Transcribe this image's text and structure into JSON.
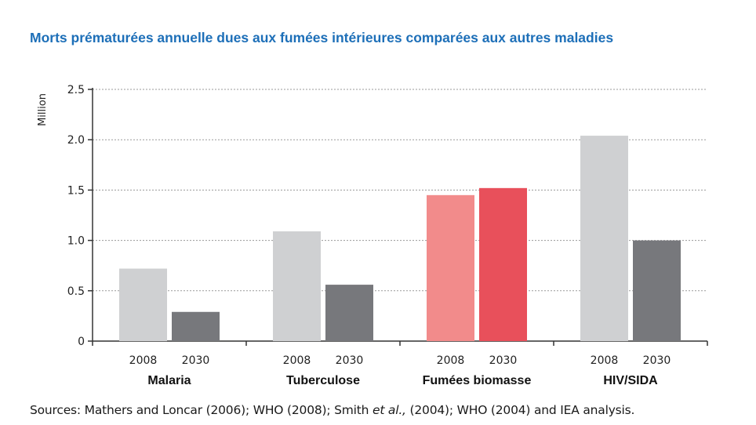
{
  "title": "Morts prématurées annuelle dues aux fumées intérieures comparées aux autres maladies",
  "source_prefix": "Sources: Mathers and Loncar (2006); WHO (2008); Smith ",
  "source_italic": "et al.,",
  "source_suffix": " (2004); WHO (2004) and IEA analysis.",
  "chart_data": {
    "type": "bar",
    "title": "Morts prématurées annuelle dues aux fumées intérieures comparées aux autres maladies",
    "ylabel": "Million",
    "xlabel": "",
    "ylim": [
      0,
      2.5
    ],
    "yticks": [
      0,
      0.5,
      1.0,
      1.5,
      2.0,
      2.5
    ],
    "ytick_labels": [
      "0",
      "0.5",
      "1.0",
      "1.5",
      "2.0",
      "2.5"
    ],
    "grid": "horizontal dotted",
    "categories": [
      "Malaria",
      "Tuberculose",
      "Fumées biomasse",
      "HIV/SIDA"
    ],
    "series": [
      {
        "name": "2008",
        "values": [
          0.72,
          1.09,
          1.45,
          2.04
        ],
        "colors": [
          "#cfd0d2",
          "#cfd0d2",
          "#f28b8b",
          "#cfd0d2"
        ]
      },
      {
        "name": "2030",
        "values": [
          0.29,
          0.56,
          1.52,
          1.0
        ],
        "colors": [
          "#77787c",
          "#77787c",
          "#e8505b",
          "#77787c"
        ]
      }
    ]
  }
}
